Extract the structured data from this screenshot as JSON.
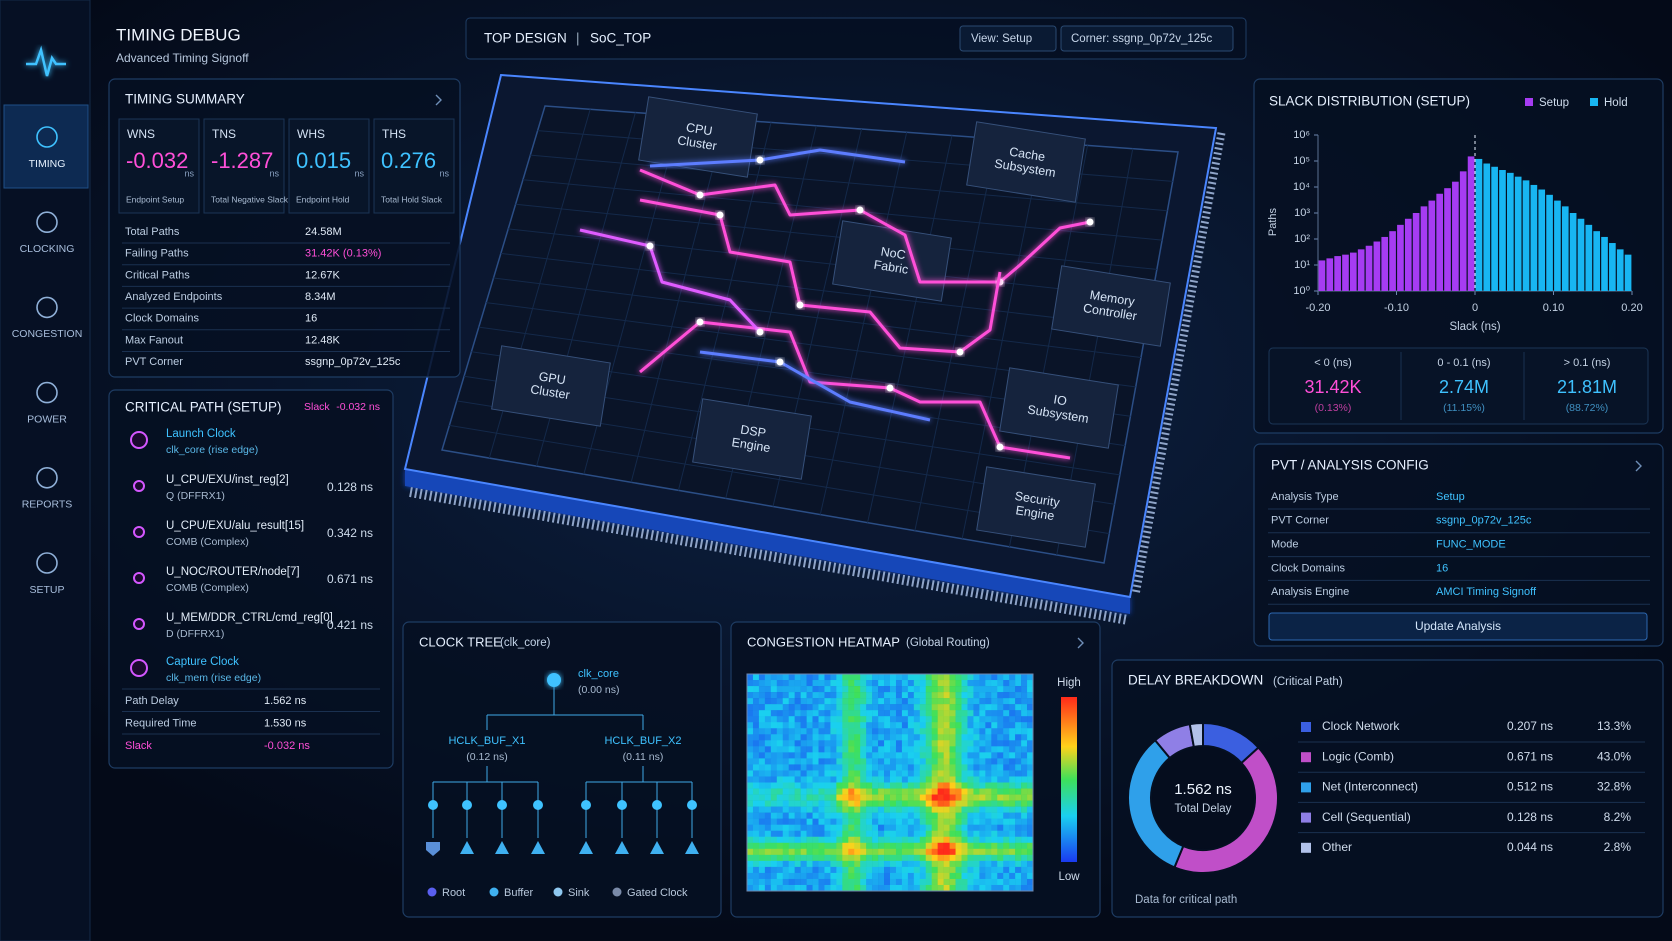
{
  "sidebar": {
    "items": [
      "TIMING",
      "CLOCKING",
      "CONGESTION",
      "POWER",
      "REPORTS",
      "SETUP"
    ]
  },
  "header": {
    "title": "TIMING DEBUG",
    "subtitle": "Advanced Timing Signoff"
  },
  "topbar": {
    "label": "TOP DESIGN",
    "separator": "|",
    "design": "SoC_TOP",
    "view": "View: Setup",
    "corner": "Corner: ssgnp_0p72v_125c"
  },
  "timing_summary": {
    "title": "TIMING SUMMARY",
    "metrics": [
      {
        "name": "WNS",
        "value": "-0.032",
        "unit": "ns",
        "desc": "Endpoint Setup"
      },
      {
        "name": "TNS",
        "value": "-1.287",
        "unit": "ns",
        "desc": "Total Negative Slack"
      },
      {
        "name": "WHS",
        "value": "0.015",
        "unit": "ns",
        "desc": "Endpoint Hold"
      },
      {
        "name": "THS",
        "value": "0.276",
        "unit": "ns",
        "desc": "Total Hold Slack"
      }
    ],
    "rows": [
      [
        "Total Paths",
        "24.58M"
      ],
      [
        "Failing Paths",
        "31.42K (0.13%)"
      ],
      [
        "Critical Paths",
        "12.67K"
      ],
      [
        "Analyzed Endpoints",
        "8.34M"
      ],
      [
        "Clock Domains",
        "16"
      ],
      [
        "Max Fanout",
        "12.48K"
      ],
      [
        "PVT Corner",
        "ssgnp_0p72v_125c"
      ]
    ]
  },
  "critical_path": {
    "title": "CRITICAL PATH (SETUP)",
    "slack_label": "Slack",
    "slack": "-0.032 ns",
    "steps": [
      {
        "name": "Launch Clock",
        "detail": "clk_core (rise edge)"
      },
      {
        "name": "U_CPU/EXU/inst_reg[2]",
        "detail": "Q (DFFRX1)",
        "delay": "0.128 ns"
      },
      {
        "name": "U_CPU/EXU/alu_result[15]",
        "detail": "COMB (Complex)",
        "delay": "0.342 ns"
      },
      {
        "name": "U_NOC/ROUTER/node[7]",
        "detail": "COMB (Complex)",
        "delay": "0.671 ns"
      },
      {
        "name": "U_MEM/DDR_CTRL/cmd_reg[0]",
        "detail": "D (DFFRX1)",
        "delay": "0.421 ns"
      },
      {
        "name": "Capture Clock",
        "detail": "clk_mem (rise edge)"
      }
    ],
    "summary": [
      [
        "Path Delay",
        "1.562 ns"
      ],
      [
        "Required Time",
        "1.530 ns"
      ],
      [
        "Slack",
        "-0.032 ns"
      ]
    ]
  },
  "chip": {
    "blocks": [
      [
        "CPU",
        "Cluster"
      ],
      [
        "Cache",
        "Subsystem"
      ],
      [
        "NoC",
        "Fabric"
      ],
      [
        "Memory",
        "Controller"
      ],
      [
        "GPU",
        "Cluster"
      ],
      [
        "IO",
        "Subsystem"
      ],
      [
        "DSP",
        "Engine"
      ],
      [
        "Security",
        "Engine"
      ]
    ]
  },
  "clock_tree": {
    "title": "CLOCK TREE",
    "subtitle": "(clk_core)",
    "root": {
      "name": "clk_core",
      "delay": "(0.00 ns)"
    },
    "buffers": [
      {
        "name": "HCLK_BUF_X1",
        "delay": "(0.12 ns)"
      },
      {
        "name": "HCLK_BUF_X2",
        "delay": "(0.11 ns)"
      }
    ],
    "legend": [
      "Root",
      "Buffer",
      "Sink",
      "Gated Clock"
    ]
  },
  "congestion": {
    "title": "CONGESTION HEATMAP",
    "subtitle": "(Global Routing)",
    "scale_high": "High",
    "scale_low": "Low"
  },
  "slack_stats": [
    {
      "range": "< 0 (ns)",
      "value": "31.42K",
      "percent": "(0.13%)"
    },
    {
      "range": "0 - 0.1 (ns)",
      "value": "2.74M",
      "percent": "(11.15%)"
    },
    {
      "range": "> 0.1 (ns)",
      "value": "21.81M",
      "percent": "(88.72%)"
    }
  ],
  "pvt_config": {
    "title": "PVT / ANALYSIS CONFIG",
    "rows": [
      [
        "Analysis Type",
        "Setup"
      ],
      [
        "PVT Corner",
        "ssgnp_0p72v_125c"
      ],
      [
        "Mode",
        "FUNC_MODE"
      ],
      [
        "Clock Domains",
        "16"
      ],
      [
        "Analysis Engine",
        "AMCI Timing Signoff"
      ]
    ],
    "button": "Update Analysis"
  },
  "chart_data": [
    {
      "type": "histogram",
      "title": "SLACK DISTRIBUTION (SETUP)",
      "xlabel": "Slack (ns)",
      "ylabel": "Paths",
      "legend": "top-right",
      "log_y": true,
      "bins": [
        -0.2,
        -0.19,
        -0.18,
        -0.17,
        -0.16,
        -0.15,
        -0.14,
        -0.13,
        -0.12,
        -0.11,
        -0.1,
        -0.09,
        -0.08,
        -0.07,
        -0.06,
        -0.05,
        -0.04,
        -0.03,
        -0.02,
        -0.01,
        0,
        0.01,
        0.02,
        0.03,
        0.04,
        0.05,
        0.06,
        0.07,
        0.08,
        0.09,
        0.1,
        0.11,
        0.12,
        0.13,
        0.14,
        0.15,
        0.16,
        0.17,
        0.18,
        0.19,
        0.2
      ],
      "series": [
        {
          "name": "Setup",
          "color": "#a63cf2",
          "values": [
            15,
            18,
            22,
            25,
            30,
            40,
            55,
            80,
            120,
            200,
            350,
            600,
            1000,
            1800,
            3000,
            5500,
            9000,
            16000,
            40000,
            150000,
            null,
            null,
            null,
            null,
            null,
            null,
            null,
            null,
            null,
            null,
            null,
            null,
            null,
            null,
            null,
            null,
            null,
            null,
            null,
            null
          ]
        },
        {
          "name": "Hold",
          "color": "#18b6f2",
          "values": [
            null,
            null,
            null,
            null,
            null,
            null,
            null,
            null,
            null,
            null,
            null,
            null,
            null,
            null,
            null,
            null,
            null,
            null,
            null,
            null,
            120000,
            80000,
            60000,
            45000,
            35000,
            25000,
            18000,
            12000,
            8000,
            5000,
            3000,
            1800,
            1000,
            600,
            350,
            200,
            120,
            70,
            40,
            25
          ]
        }
      ],
      "xlim": [
        -0.2,
        0.2
      ],
      "xticks": [
        {
          "value": -0.2,
          "label": "-0.20"
        },
        {
          "value": -0.1,
          "label": "-0.10"
        },
        0,
        {
          "value": 0.1,
          "label": "0.10"
        },
        {
          "value": 0.2,
          "label": "0.20"
        }
      ],
      "ylim": [
        1,
        1000000
      ],
      "yticks": [
        {
          "value": 1,
          "label": "10⁰"
        },
        {
          "value": 10,
          "label": "10¹"
        },
        {
          "value": 100,
          "label": "10²"
        },
        {
          "value": 1000,
          "label": "10³"
        },
        {
          "value": 10000,
          "label": "10⁴"
        },
        {
          "value": 100000,
          "label": "10⁵"
        },
        {
          "value": 1000000,
          "label": "10⁶"
        }
      ]
    },
    {
      "type": "pie",
      "title": "DELAY BREAKDOWN",
      "subtitle": "(Critical Path)",
      "center_value": "1.562 ns",
      "center_label": "Total Delay",
      "note": "Data for critical path",
      "categories": [
        "Clock Network",
        "Logic (Comb)",
        "Net (Interconnect)",
        "Cell (Sequential)",
        "Other"
      ],
      "values": [
        0.207,
        0.671,
        0.512,
        0.128,
        0.044
      ],
      "value_labels": [
        "0.207 ns",
        "0.671 ns",
        "0.512 ns",
        "0.128 ns",
        "0.044 ns"
      ],
      "percent_labels": [
        "13.3%",
        "43.0%",
        "32.8%",
        "8.2%",
        "2.8%"
      ],
      "colors": [
        "#3b5fe0",
        "#c04fc8",
        "#2fa0ea",
        "#8f7fe6",
        "#b2c2ea"
      ]
    }
  ]
}
